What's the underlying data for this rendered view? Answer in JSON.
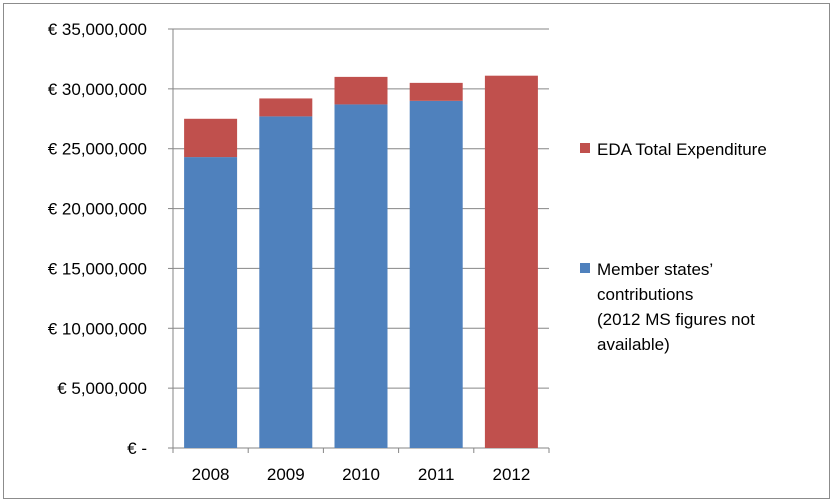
{
  "chart_data": {
    "type": "bar",
    "stacked": true,
    "categories": [
      "2008",
      "2009",
      "2010",
      "2011",
      "2012"
    ],
    "series": [
      {
        "name_lines": [
          "Member states’",
          "contributions",
          "(2012 MS figures not",
          "available)"
        ],
        "color": "#4f81bd",
        "values": [
          24300000,
          27700000,
          28700000,
          29000000,
          0
        ]
      },
      {
        "name_lines": [
          "EDA Total Expenditure"
        ],
        "color": "#c0504d",
        "values": [
          3200000,
          1500000,
          2300000,
          1500000,
          31100000
        ]
      }
    ],
    "y_ticks": [
      "€ 35,000,000",
      "€ 30,000,000",
      "€ 25,000,000",
      "€ 20,000,000",
      "€ 15,000,000",
      "€ 10,000,000",
      "€ 5,000,000",
      "€ -"
    ],
    "ylim": [
      0,
      35000000
    ],
    "grid": true,
    "legend_position": "right",
    "legend_order": [
      1,
      0
    ]
  }
}
